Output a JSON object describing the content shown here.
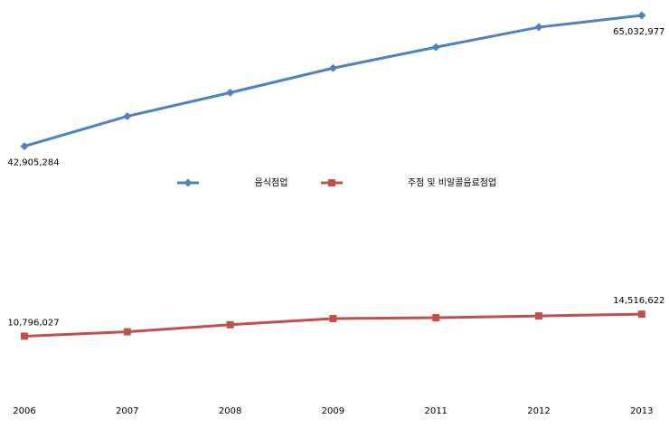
{
  "chart_data": {
    "type": "line",
    "categories": [
      "2006",
      "2007",
      "2008",
      "2009",
      "2011",
      "2012",
      "2013"
    ],
    "series": [
      {
        "name": "음식점업",
        "color": "#4f81bd",
        "marker": "diamond",
        "values": [
          42905284,
          47976000,
          51971000,
          56120000,
          59655000,
          63036000,
          65032977
        ],
        "value_labels": [
          "42,905,284",
          null,
          null,
          null,
          null,
          null,
          "65,032,977"
        ]
      },
      {
        "name": "주점 및 비알콜음료점업",
        "color": "#c0504d",
        "marker": "square",
        "values": [
          10796027,
          11540000,
          12730000,
          13770000,
          13920000,
          14220000,
          14516622
        ],
        "value_labels": [
          "10,796,027",
          null,
          null,
          null,
          null,
          null,
          "14,516,622"
        ]
      }
    ]
  }
}
